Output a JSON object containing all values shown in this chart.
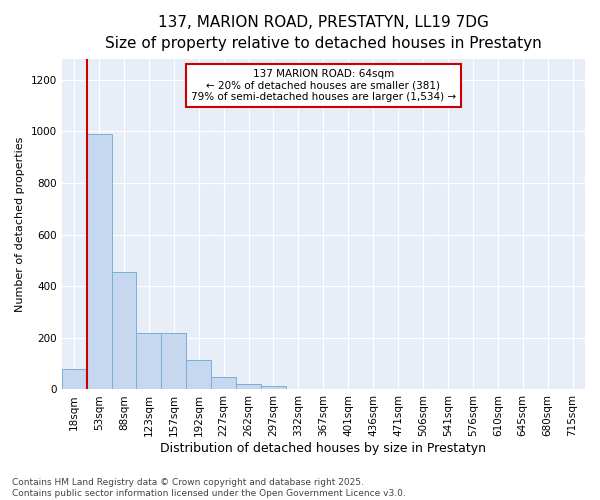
{
  "title": "137, MARION ROAD, PRESTATYN, LL19 7DG",
  "subtitle": "Size of property relative to detached houses in Prestatyn",
  "xlabel": "Distribution of detached houses by size in Prestatyn",
  "ylabel": "Number of detached properties",
  "bar_labels": [
    "18sqm",
    "53sqm",
    "88sqm",
    "123sqm",
    "157sqm",
    "192sqm",
    "227sqm",
    "262sqm",
    "297sqm",
    "332sqm",
    "367sqm",
    "401sqm",
    "436sqm",
    "471sqm",
    "506sqm",
    "541sqm",
    "576sqm",
    "610sqm",
    "645sqm",
    "680sqm",
    "715sqm"
  ],
  "bar_values": [
    80,
    990,
    455,
    220,
    220,
    115,
    50,
    20,
    15,
    0,
    0,
    0,
    0,
    0,
    0,
    0,
    0,
    0,
    0,
    0,
    0
  ],
  "bar_color": "#c5d8f0",
  "bar_edge_color": "#7aafd4",
  "bg_color": "#e8eef8",
  "grid_color": "#ffffff",
  "vline_color": "#cc0000",
  "vline_x": 1.0,
  "annotation_text": "137 MARION ROAD: 64sqm\n← 20% of detached houses are smaller (381)\n79% of semi-detached houses are larger (1,534) →",
  "annotation_box_color": "#cc0000",
  "ylim": [
    0,
    1280
  ],
  "yticks": [
    0,
    200,
    400,
    600,
    800,
    1000,
    1200
  ],
  "footer": "Contains HM Land Registry data © Crown copyright and database right 2025.\nContains public sector information licensed under the Open Government Licence v3.0.",
  "title_fontsize": 11,
  "subtitle_fontsize": 9.5,
  "xlabel_fontsize": 9,
  "ylabel_fontsize": 8,
  "tick_fontsize": 7.5,
  "annotation_fontsize": 7.5,
  "footer_fontsize": 6.5
}
